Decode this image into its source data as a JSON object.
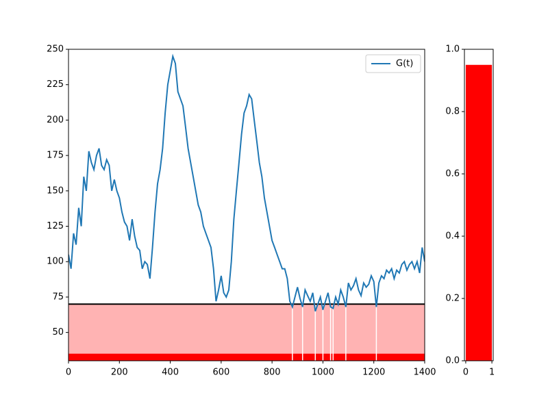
{
  "chart_data": [
    {
      "type": "line",
      "x": [
        0,
        10,
        20,
        30,
        40,
        50,
        60,
        70,
        80,
        90,
        100,
        110,
        120,
        130,
        140,
        150,
        160,
        170,
        180,
        190,
        200,
        210,
        220,
        230,
        240,
        250,
        260,
        270,
        280,
        290,
        300,
        310,
        320,
        330,
        340,
        350,
        360,
        370,
        380,
        390,
        400,
        410,
        420,
        430,
        440,
        450,
        460,
        470,
        480,
        490,
        500,
        510,
        520,
        530,
        540,
        550,
        560,
        570,
        580,
        590,
        600,
        610,
        620,
        630,
        640,
        650,
        660,
        670,
        680,
        690,
        700,
        710,
        720,
        730,
        740,
        750,
        760,
        770,
        780,
        790,
        800,
        810,
        820,
        830,
        840,
        850,
        860,
        870,
        880,
        890,
        900,
        910,
        920,
        930,
        940,
        950,
        960,
        970,
        980,
        990,
        1000,
        1010,
        1020,
        1030,
        1040,
        1050,
        1060,
        1070,
        1080,
        1090,
        1100,
        1110,
        1120,
        1130,
        1140,
        1150,
        1160,
        1170,
        1180,
        1190,
        1200,
        1210,
        1220,
        1230,
        1240,
        1250,
        1260,
        1270,
        1280,
        1290,
        1300,
        1310,
        1320,
        1330,
        1340,
        1350,
        1360,
        1370,
        1380,
        1390,
        1400
      ],
      "series": [
        {
          "name": "G(t)",
          "color": "#1f77b4",
          "values": [
            105,
            95,
            120,
            112,
            138,
            125,
            160,
            150,
            178,
            170,
            165,
            175,
            180,
            168,
            165,
            172,
            168,
            150,
            158,
            150,
            145,
            135,
            128,
            125,
            115,
            130,
            118,
            110,
            108,
            95,
            100,
            98,
            88,
            110,
            135,
            155,
            165,
            180,
            205,
            225,
            235,
            245,
            240,
            220,
            215,
            210,
            195,
            180,
            170,
            160,
            150,
            140,
            135,
            125,
            120,
            115,
            110,
            95,
            72,
            80,
            90,
            78,
            75,
            80,
            100,
            130,
            150,
            170,
            190,
            205,
            210,
            218,
            215,
            200,
            185,
            170,
            160,
            145,
            135,
            125,
            115,
            110,
            105,
            100,
            95,
            95,
            88,
            72,
            68,
            75,
            82,
            74,
            68,
            80,
            76,
            72,
            78,
            65,
            70,
            75,
            66,
            72,
            78,
            68,
            67,
            75,
            70,
            80,
            75,
            68,
            85,
            80,
            83,
            88,
            80,
            76,
            85,
            82,
            84,
            90,
            86,
            68,
            85,
            90,
            88,
            94,
            92,
            95,
            88,
            94,
            92,
            98,
            100,
            94,
            98,
            100,
            95,
            100,
            92,
            110,
            100
          ]
        }
      ],
      "xlim": [
        0,
        1400
      ],
      "xticks": [
        0,
        200,
        400,
        600,
        800,
        1000,
        1200,
        1400
      ],
      "ylim": [
        30,
        250
      ],
      "yticks": [
        50,
        75,
        100,
        125,
        150,
        175,
        200,
        225,
        250
      ],
      "threshold": 70,
      "threshold_fill": "#ffb3b3",
      "strip_top": 35,
      "strip_color": "#ff0000",
      "legend": "upper right"
    },
    {
      "type": "histogram",
      "bins": [
        0,
        1
      ],
      "values": [
        0.95
      ],
      "color": "#ff0000",
      "xlim": [
        -0.05,
        1.05
      ],
      "xticks": [
        0,
        1
      ],
      "ylim": [
        0,
        1
      ],
      "yticks": [
        {
          "value": 0,
          "label": "0.0"
        },
        {
          "value": 0.2,
          "label": "0.2"
        },
        {
          "value": 0.4,
          "label": "0.4"
        },
        {
          "value": 0.6,
          "label": "0.6"
        },
        {
          "value": 0.8,
          "label": "0.8"
        },
        {
          "value": 1,
          "label": "1.0"
        }
      ]
    }
  ]
}
